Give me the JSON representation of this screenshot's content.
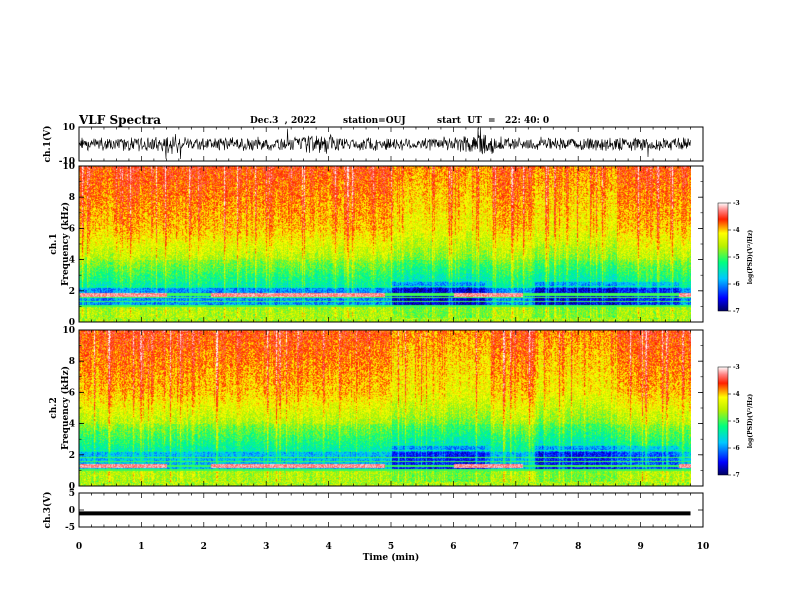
{
  "header": {
    "title": "VLF Spectra",
    "date": "Dec.3  , 2022",
    "station": "station=OUJ",
    "start": "start  UT  =   22: 40: 0"
  },
  "chart_data": [
    {
      "type": "line",
      "id": "ch1",
      "ylabel": "ch.1(V)",
      "ylim": [
        -10,
        10
      ],
      "yticks": [
        "10",
        "-10"
      ],
      "xlim": [
        0,
        10
      ],
      "description_series": "broadband waveform"
    },
    {
      "type": "heatmap",
      "id": "ch1-spec",
      "ylabel_line1": "ch.1",
      "ylabel_line2": "Frequency  (kHz)",
      "ylim": [
        0,
        10
      ],
      "yticks": [
        "0",
        "2",
        "4",
        "6",
        "8",
        "10"
      ],
      "xlim": [
        0,
        10
      ],
      "colorbar": {
        "label": "log(PSD)(V²/Hz)",
        "range": [
          -7,
          -3
        ],
        "ticks": [
          "-3",
          "-4",
          "-5",
          "-6",
          "-7"
        ]
      }
    },
    {
      "type": "heatmap",
      "id": "ch2-spec",
      "ylabel_line1": "ch.2",
      "ylabel_line2": "Frequency  (kHz)",
      "ylim": [
        0,
        10
      ],
      "yticks": [
        "0",
        "2",
        "4",
        "6",
        "8",
        "10"
      ],
      "xlim": [
        0,
        10
      ],
      "colorbar": {
        "label": "log(PSD)(V²/Hz)",
        "range": [
          -7,
          -3
        ],
        "ticks": [
          "-3",
          "-4",
          "-5",
          "-6",
          "-7"
        ]
      }
    },
    {
      "type": "line",
      "id": "ch3",
      "ylabel": "ch.3(V)",
      "ylim": [
        -5,
        5
      ],
      "yticks": [
        "5",
        "0",
        "-5"
      ],
      "xlim": [
        0,
        10
      ],
      "series": [
        {
          "x": [
            0,
            9.8
          ],
          "y": [
            -1,
            -1
          ]
        }
      ]
    }
  ],
  "xaxis": {
    "label": "Time  (min)",
    "ticks": [
      "0",
      "1",
      "2",
      "3",
      "4",
      "5",
      "6",
      "7",
      "8",
      "9",
      "10"
    ]
  },
  "data_end_min": 9.8
}
